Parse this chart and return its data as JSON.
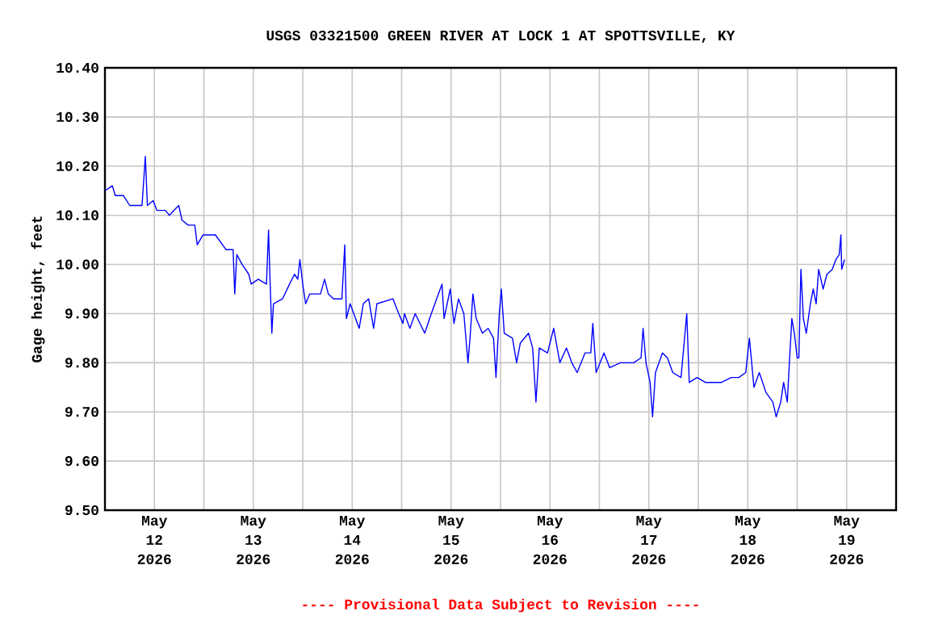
{
  "chart_data": {
    "type": "line",
    "title": "USGS 03321500 GREEN RIVER AT LOCK 1 AT SPOTTSVILLE, KY",
    "ylabel": "Gage height, feet",
    "annotations": [
      "---- Provisional Data Subject to Revision ----"
    ],
    "xlim": [
      "2026-05-12T00:00",
      "2026-05-20T00:00"
    ],
    "xticks": [
      {
        "value": "2026-05-12T00:00",
        "label": null
      },
      {
        "value": "2026-05-12T12:00",
        "label": "May 12 2026"
      },
      {
        "value": "2026-05-13T00:00",
        "label": null
      },
      {
        "value": "2026-05-13T12:00",
        "label": "May 13 2026"
      },
      {
        "value": "2026-05-14T00:00",
        "label": null
      },
      {
        "value": "2026-05-14T12:00",
        "label": "May 14 2026"
      },
      {
        "value": "2026-05-15T00:00",
        "label": null
      },
      {
        "value": "2026-05-15T12:00",
        "label": "May 15 2026"
      },
      {
        "value": "2026-05-16T00:00",
        "label": null
      },
      {
        "value": "2026-05-16T12:00",
        "label": "May 16 2026"
      },
      {
        "value": "2026-05-17T00:00",
        "label": null
      },
      {
        "value": "2026-05-17T12:00",
        "label": "May 17 2026"
      },
      {
        "value": "2026-05-18T00:00",
        "label": null
      },
      {
        "value": "2026-05-18T12:00",
        "label": "May 18 2026"
      },
      {
        "value": "2026-05-19T00:00",
        "label": null
      },
      {
        "value": "2026-05-19T12:00",
        "label": "May 19 2026"
      },
      {
        "value": "2026-05-20T00:00",
        "label": null
      }
    ],
    "ylim": [
      9.5,
      10.4
    ],
    "yticks": [
      {
        "value": 9.5,
        "label": "9.50"
      },
      {
        "value": 9.6,
        "label": "9.60"
      },
      {
        "value": 9.7,
        "label": "9.70"
      },
      {
        "value": 9.8,
        "label": "9.80"
      },
      {
        "value": 9.9,
        "label": "9.90"
      },
      {
        "value": 10.0,
        "label": "10.00"
      },
      {
        "value": 10.1,
        "label": "10.10"
      },
      {
        "value": 10.2,
        "label": "10.20"
      },
      {
        "value": 10.3,
        "label": "10.30"
      },
      {
        "value": 10.4,
        "label": "10.40"
      }
    ],
    "grid": true,
    "series": [
      {
        "color": "#0000ff",
        "x": [
          "2026-05-12T00:00",
          "2026-05-12T01:48",
          "2026-05-12T02:30",
          "2026-05-12T04:30",
          "2026-05-12T06:00",
          "2026-05-12T09:00",
          "2026-05-12T09:48",
          "2026-05-12T10:18",
          "2026-05-12T11:42",
          "2026-05-12T12:36",
          "2026-05-12T14:42",
          "2026-05-12T15:36",
          "2026-05-12T17:54",
          "2026-05-12T18:42",
          "2026-05-12T20:12",
          "2026-05-12T21:48",
          "2026-05-12T22:24",
          "2026-05-12T23:48",
          "2026-05-13T02:48",
          "2026-05-13T05:24",
          "2026-05-13T07:06",
          "2026-05-13T07:30",
          "2026-05-13T08:00",
          "2026-05-13T09:18",
          "2026-05-13T10:54",
          "2026-05-13T11:30",
          "2026-05-13T13:12",
          "2026-05-13T15:12",
          "2026-05-13T15:42",
          "2026-05-13T16:06",
          "2026-05-13T16:30",
          "2026-05-13T16:54",
          "2026-05-13T19:06",
          "2026-05-13T20:48",
          "2026-05-13T22:00",
          "2026-05-13T22:48",
          "2026-05-13T23:18",
          "2026-05-14T00:00",
          "2026-05-14T00:42",
          "2026-05-14T01:42",
          "2026-05-14T04:18",
          "2026-05-14T05:18",
          "2026-05-14T06:12",
          "2026-05-14T07:30",
          "2026-05-14T09:30",
          "2026-05-14T10:12",
          "2026-05-14T10:36",
          "2026-05-14T11:30",
          "2026-05-14T13:42",
          "2026-05-14T14:42",
          "2026-05-14T16:00",
          "2026-05-14T17:12",
          "2026-05-14T18:00",
          "2026-05-14T21:54",
          "2026-05-14T23:18",
          "2026-05-15T00:18",
          "2026-05-15T00:42",
          "2026-05-15T02:00",
          "2026-05-15T03:18",
          "2026-05-15T05:36",
          "2026-05-15T07:12",
          "2026-05-15T09:48",
          "2026-05-15T10:18",
          "2026-05-15T11:48",
          "2026-05-15T12:42",
          "2026-05-15T13:48",
          "2026-05-15T15:06",
          "2026-05-15T16:06",
          "2026-05-15T16:36",
          "2026-05-15T17:18",
          "2026-05-15T18:06",
          "2026-05-15T19:36",
          "2026-05-15T21:00",
          "2026-05-15T22:18",
          "2026-05-15T22:54",
          "2026-05-15T23:42",
          "2026-05-16T00:12",
          "2026-05-16T00:54",
          "2026-05-16T02:54",
          "2026-05-16T03:54",
          "2026-05-16T04:48",
          "2026-05-16T06:48",
          "2026-05-16T07:48",
          "2026-05-16T08:36",
          "2026-05-16T09:24",
          "2026-05-16T11:24",
          "2026-05-16T12:54",
          "2026-05-16T14:24",
          "2026-05-16T16:00",
          "2026-05-16T17:18",
          "2026-05-16T18:36",
          "2026-05-16T20:30",
          "2026-05-16T21:54",
          "2026-05-16T22:24",
          "2026-05-16T23:12",
          "2026-05-17T01:06",
          "2026-05-17T02:30",
          "2026-05-17T05:06",
          "2026-05-17T08:18",
          "2026-05-17T10:06",
          "2026-05-17T10:36",
          "2026-05-17T11:18",
          "2026-05-17T12:18",
          "2026-05-17T12:54",
          "2026-05-17T13:36",
          "2026-05-17T15:18",
          "2026-05-17T16:30",
          "2026-05-17T17:48",
          "2026-05-17T19:48",
          "2026-05-17T21:12",
          "2026-05-17T21:48",
          "2026-05-17T23:42",
          "2026-05-18T01:42",
          "2026-05-18T03:42",
          "2026-05-18T05:36",
          "2026-05-18T08:00",
          "2026-05-18T09:48",
          "2026-05-18T11:30",
          "2026-05-18T12:24",
          "2026-05-18T13:30",
          "2026-05-18T14:48",
          "2026-05-18T16:24",
          "2026-05-18T18:06",
          "2026-05-18T18:54",
          "2026-05-18T20:00",
          "2026-05-18T20:42",
          "2026-05-18T21:36",
          "2026-05-18T22:06",
          "2026-05-18T22:42",
          "2026-05-18T23:18",
          "2026-05-19T00:00",
          "2026-05-19T00:24",
          "2026-05-19T00:54",
          "2026-05-19T01:30",
          "2026-05-19T02:12",
          "2026-05-19T03:12",
          "2026-05-19T03:54",
          "2026-05-19T04:36",
          "2026-05-19T05:12",
          "2026-05-19T06:18",
          "2026-05-19T07:12",
          "2026-05-19T08:30",
          "2026-05-19T09:24",
          "2026-05-19T10:12",
          "2026-05-19T10:36",
          "2026-05-19T10:48",
          "2026-05-19T11:30"
        ],
        "values": [
          10.15,
          10.16,
          10.14,
          10.14,
          10.12,
          10.12,
          10.22,
          10.12,
          10.13,
          10.11,
          10.11,
          10.1,
          10.12,
          10.09,
          10.08,
          10.08,
          10.04,
          10.06,
          10.06,
          10.03,
          10.03,
          9.94,
          10.02,
          10.0,
          9.98,
          9.96,
          9.97,
          9.96,
          10.07,
          9.96,
          9.86,
          9.92,
          9.93,
          9.96,
          9.98,
          9.97,
          10.01,
          9.96,
          9.92,
          9.94,
          9.94,
          9.97,
          9.94,
          9.93,
          9.93,
          10.04,
          9.89,
          9.92,
          9.87,
          9.92,
          9.93,
          9.87,
          9.92,
          9.93,
          9.9,
          9.88,
          9.9,
          9.87,
          9.9,
          9.86,
          9.9,
          9.96,
          9.89,
          9.95,
          9.88,
          9.93,
          9.9,
          9.8,
          9.85,
          9.94,
          9.89,
          9.86,
          9.87,
          9.85,
          9.77,
          9.9,
          9.95,
          9.86,
          9.85,
          9.8,
          9.84,
          9.86,
          9.83,
          9.72,
          9.83,
          9.82,
          9.87,
          9.8,
          9.83,
          9.8,
          9.78,
          9.82,
          9.82,
          9.88,
          9.78,
          9.82,
          9.79,
          9.8,
          9.8,
          9.81,
          9.87,
          9.8,
          9.76,
          9.69,
          9.78,
          9.82,
          9.81,
          9.78,
          9.77,
          9.9,
          9.76,
          9.77,
          9.76,
          9.76,
          9.76,
          9.77,
          9.77,
          9.78,
          9.85,
          9.75,
          9.78,
          9.74,
          9.72,
          9.69,
          9.72,
          9.76,
          9.72,
          9.8,
          9.89,
          9.86,
          9.81,
          9.81,
          9.99,
          9.89,
          9.86,
          9.92,
          9.95,
          9.92,
          9.99,
          9.95,
          9.98,
          9.99,
          10.01,
          10.02,
          10.06,
          9.99,
          10.01
        ]
      }
    ]
  }
}
